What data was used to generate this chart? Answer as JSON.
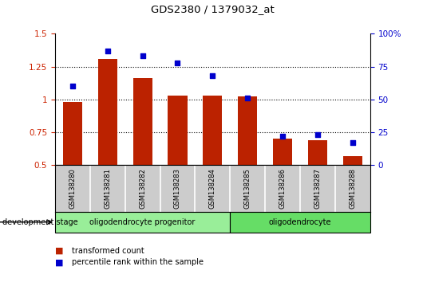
{
  "title": "GDS2380 / 1379032_at",
  "samples": [
    "GSM138280",
    "GSM138281",
    "GSM138282",
    "GSM138283",
    "GSM138284",
    "GSM138285",
    "GSM138286",
    "GSM138287",
    "GSM138288"
  ],
  "bar_values": [
    0.98,
    1.31,
    1.16,
    1.03,
    1.03,
    1.02,
    0.7,
    0.69,
    0.57
  ],
  "dot_values_pct": [
    60,
    87,
    83,
    78,
    68,
    51,
    22,
    23,
    17
  ],
  "bar_color": "#bb2200",
  "dot_color": "#0000cc",
  "ylim_left": [
    0.5,
    1.5
  ],
  "ylim_right": [
    0,
    100
  ],
  "yticks_left": [
    0.5,
    0.75,
    1.0,
    1.25,
    1.5
  ],
  "ytick_labels_left": [
    "0.5",
    "0.75",
    "1",
    "1.25",
    "1.5"
  ],
  "yticks_right": [
    0,
    25,
    50,
    75,
    100
  ],
  "ytick_labels_right": [
    "0",
    "25",
    "50",
    "75",
    "100%"
  ],
  "grid_values": [
    0.75,
    1.0,
    1.25
  ],
  "stage_groups": [
    {
      "label": "oligodendrocyte progenitor",
      "start": 0,
      "end": 5,
      "color": "#99ee99"
    },
    {
      "label": "oligodendrocyte",
      "start": 5,
      "end": 9,
      "color": "#66dd66"
    }
  ],
  "dev_stage_label": "development stage",
  "legend_bar_label": "transformed count",
  "legend_dot_label": "percentile rank within the sample",
  "tick_label_color_left": "#cc2200",
  "tick_label_color_right": "#0000cc",
  "bar_baseline": 0.5,
  "tick_area_color": "#cccccc"
}
